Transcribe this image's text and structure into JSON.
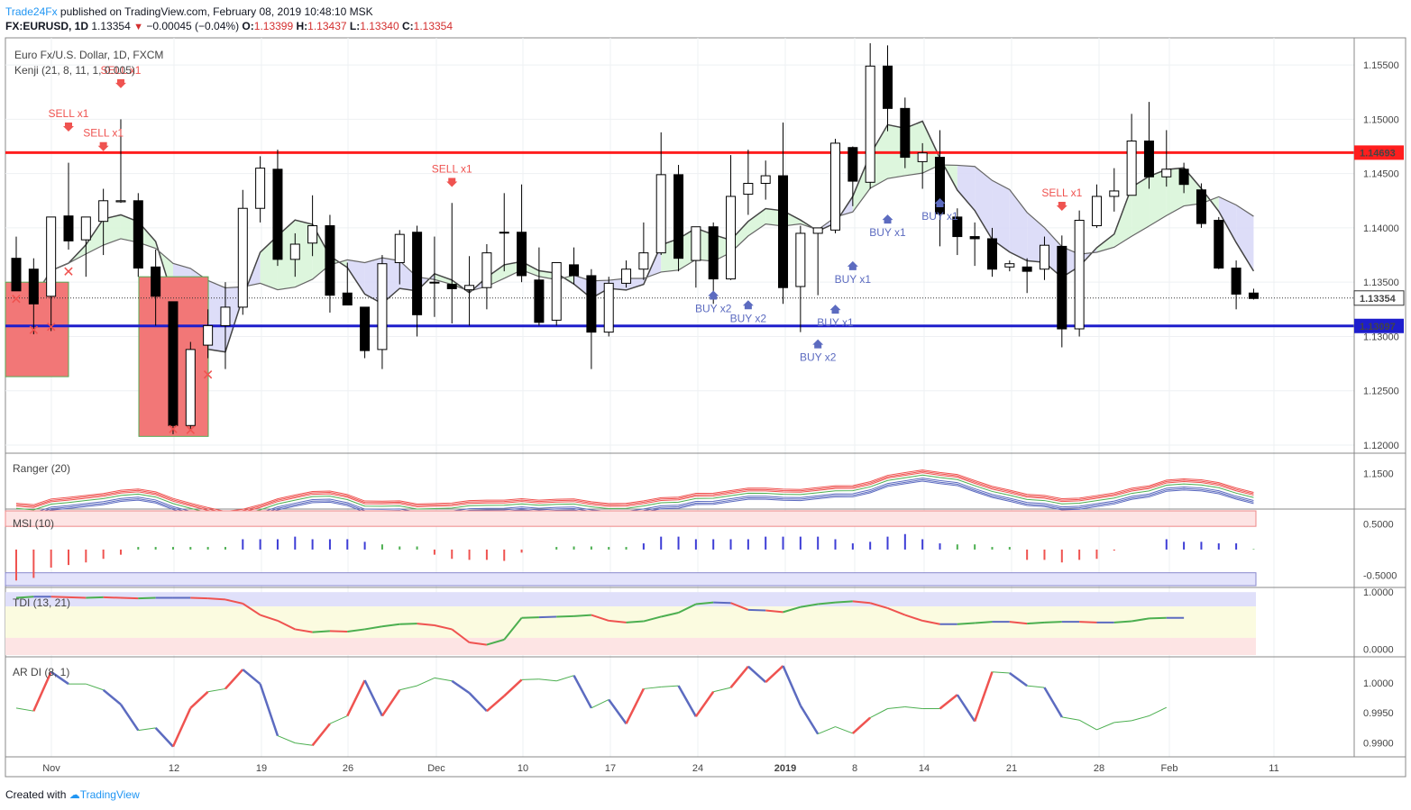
{
  "header": {
    "brand": "Trade24Fx",
    "published": " published on TradingView.com, February 08, 2019 10:48:10 MSK",
    "symbol": "FX:EURUSD, 1D",
    "price": "1.13354",
    "change": "−0.00045 (−0.04%)",
    "ohlc": {
      "o_label": "O:",
      "o": "1.13399",
      "h_label": "H:",
      "h": "1.13437",
      "l_label": "L:",
      "l": "1.13340",
      "c_label": "C:",
      "c": "1.13354"
    }
  },
  "footer": {
    "created": "Created with",
    "tv": "TradingView"
  },
  "colors": {
    "up": "#ffffff",
    "down": "#000000",
    "red": "#ff1e1e",
    "blue": "#1e1ecc",
    "sell": "#ef5350",
    "buy": "#5c6bc0"
  },
  "chart_data": [
    {
      "type": "candlestick",
      "title": "Euro Fx/U.S. Dollar, 1D, FXCM",
      "indicator": "Kenji (21, 8, 11, 1, 0.005)",
      "ylim": [
        1.1195,
        1.1575
      ],
      "yticks": [
        "1.15500",
        "1.15000",
        "1.14500",
        "1.14000",
        "1.13500",
        "1.13000",
        "1.12500",
        "1.12000"
      ],
      "xticks": [
        "Nov",
        "12",
        "19",
        "26",
        "Dec",
        "10",
        "17",
        "24",
        "2019",
        "8",
        "14",
        "21",
        "28",
        "Feb",
        "11"
      ],
      "levels": [
        {
          "name": "resistance",
          "value": 1.14693,
          "label": "1.14693"
        },
        {
          "name": "support",
          "value": 1.13097,
          "label": "1.13097"
        },
        {
          "name": "last",
          "value": 1.13354,
          "label": "1.13354"
        }
      ],
      "candles": [
        [
          1.1372,
          1.1392,
          1.1345,
          1.1342
        ],
        [
          1.1362,
          1.1372,
          1.1302,
          1.133
        ],
        [
          1.1337,
          1.1407,
          1.1305,
          1.141
        ],
        [
          1.1411,
          1.146,
          1.138,
          1.1388
        ],
        [
          1.1389,
          1.141,
          1.1355,
          1.141
        ],
        [
          1.1406,
          1.1436,
          1.1375,
          1.1425
        ],
        [
          1.1424,
          1.15,
          1.1423,
          1.1425
        ],
        [
          1.1425,
          1.1432,
          1.1355,
          1.1363
        ],
        [
          1.1364,
          1.138,
          1.131,
          1.1337
        ],
        [
          1.1332,
          1.1332,
          1.121,
          1.1218
        ],
        [
          1.1218,
          1.1295,
          1.1215,
          1.1288
        ],
        [
          1.1292,
          1.1325,
          1.128,
          1.131
        ],
        [
          1.131,
          1.135,
          1.127,
          1.1327
        ],
        [
          1.1327,
          1.1435,
          1.132,
          1.1418
        ],
        [
          1.1418,
          1.1466,
          1.1405,
          1.1455
        ],
        [
          1.1454,
          1.1472,
          1.1365,
          1.1371
        ],
        [
          1.1371,
          1.1395,
          1.1355,
          1.1385
        ],
        [
          1.1386,
          1.143,
          1.1374,
          1.1402
        ],
        [
          1.1402,
          1.1412,
          1.1322,
          1.1338
        ],
        [
          1.134,
          1.1368,
          1.133,
          1.1329
        ],
        [
          1.1327,
          1.1327,
          1.128,
          1.1287
        ],
        [
          1.1288,
          1.1375,
          1.127,
          1.1367
        ],
        [
          1.1368,
          1.1398,
          1.1348,
          1.1394
        ],
        [
          1.1396,
          1.1402,
          1.13,
          1.132
        ],
        [
          1.135,
          1.1392,
          1.1318,
          1.135
        ],
        [
          1.1348,
          1.1423,
          1.1312,
          1.1344
        ],
        [
          1.1343,
          1.1374,
          1.131,
          1.1347
        ],
        [
          1.1345,
          1.1385,
          1.1325,
          1.1377
        ],
        [
          1.1396,
          1.1432,
          1.136,
          1.1396
        ],
        [
          1.1396,
          1.144,
          1.135,
          1.1356
        ],
        [
          1.1352,
          1.1382,
          1.131,
          1.1313
        ],
        [
          1.1315,
          1.1365,
          1.131,
          1.1368
        ],
        [
          1.1366,
          1.1382,
          1.1348,
          1.1356
        ],
        [
          1.1356,
          1.1362,
          1.127,
          1.1304
        ],
        [
          1.1304,
          1.1355,
          1.13,
          1.1349
        ],
        [
          1.1349,
          1.137,
          1.1345,
          1.1362
        ],
        [
          1.1362,
          1.1405,
          1.1352,
          1.1377
        ],
        [
          1.1377,
          1.1488,
          1.1375,
          1.1449
        ],
        [
          1.1449,
          1.1458,
          1.136,
          1.1372
        ],
        [
          1.137,
          1.14,
          1.1345,
          1.1401
        ],
        [
          1.1401,
          1.1405,
          1.133,
          1.1353
        ],
        [
          1.1353,
          1.1467,
          1.1352,
          1.1429
        ],
        [
          1.1431,
          1.1472,
          1.1412,
          1.1441
        ],
        [
          1.1441,
          1.1462,
          1.1426,
          1.1448
        ],
        [
          1.1448,
          1.1497,
          1.133,
          1.1345
        ],
        [
          1.1346,
          1.1402,
          1.1304,
          1.1395
        ],
        [
          1.1395,
          1.14,
          1.1338,
          1.14
        ],
        [
          1.1398,
          1.1482,
          1.1395,
          1.1478
        ],
        [
          1.1474,
          1.1475,
          1.142,
          1.1443
        ],
        [
          1.1442,
          1.157,
          1.1436,
          1.1549
        ],
        [
          1.1549,
          1.1568,
          1.1489,
          1.151
        ],
        [
          1.151,
          1.152,
          1.1455,
          1.1465
        ],
        [
          1.1461,
          1.1478,
          1.1436,
          1.1469
        ],
        [
          1.1465,
          1.149,
          1.1383,
          1.1413
        ],
        [
          1.141,
          1.1418,
          1.1375,
          1.1392
        ],
        [
          1.1392,
          1.1405,
          1.1365,
          1.139
        ],
        [
          1.139,
          1.14,
          1.1355,
          1.1362
        ],
        [
          1.1364,
          1.137,
          1.136,
          1.1367
        ],
        [
          1.1364,
          1.1372,
          1.134,
          1.136
        ],
        [
          1.1362,
          1.1392,
          1.1352,
          1.1384
        ],
        [
          1.1383,
          1.1393,
          1.129,
          1.1307
        ],
        [
          1.1307,
          1.1416,
          1.13,
          1.1407
        ],
        [
          1.1402,
          1.144,
          1.14,
          1.1429
        ],
        [
          1.1429,
          1.1455,
          1.1415,
          1.1434
        ],
        [
          1.143,
          1.1505,
          1.143,
          1.148
        ],
        [
          1.148,
          1.1516,
          1.1436,
          1.1447
        ],
        [
          1.1447,
          1.149,
          1.1438,
          1.1454
        ],
        [
          1.1454,
          1.146,
          1.1432,
          1.144
        ],
        [
          1.1435,
          1.1441,
          1.14,
          1.1404
        ],
        [
          1.1407,
          1.141,
          1.1362,
          1.1363
        ],
        [
          1.1363,
          1.137,
          1.1325,
          1.1339
        ],
        [
          1.134,
          1.1344,
          1.1334,
          1.1335
        ]
      ],
      "signals": [
        {
          "label": "SELL x1",
          "dir": "sell",
          "bar": 3,
          "price": 1.1492
        },
        {
          "label": "SELL x1",
          "dir": "sell",
          "bar": 5,
          "price": 1.1474
        },
        {
          "label": "SELL x1",
          "dir": "sell",
          "bar": 6,
          "price": 1.1532
        },
        {
          "label": "SELL x1",
          "dir": "sell",
          "bar": 25,
          "price": 1.1441
        },
        {
          "label": "SELL x1",
          "dir": "sell",
          "bar": 60,
          "price": 1.1419
        },
        {
          "label": "BUY x2",
          "dir": "buy",
          "bar": 40,
          "price": 1.1339
        },
        {
          "label": "BUY x2",
          "dir": "buy",
          "bar": 42,
          "price": 1.133
        },
        {
          "label": "BUY x2",
          "dir": "buy",
          "bar": 46,
          "price": 1.1294
        },
        {
          "label": "BUY x1",
          "dir": "buy",
          "bar": 47,
          "price": 1.1326
        },
        {
          "label": "BUY x1",
          "dir": "buy",
          "bar": 48,
          "price": 1.1366
        },
        {
          "label": "BUY x1",
          "dir": "buy",
          "bar": 50,
          "price": 1.1409
        },
        {
          "label": "BUY x1",
          "dir": "buy",
          "bar": 53,
          "price": 1.1424
        }
      ],
      "crosses": [
        [
          0,
          1.133
        ],
        [
          1,
          1.1301
        ],
        [
          2,
          1.1304
        ],
        [
          3,
          1.1355
        ],
        [
          9,
          1.121
        ],
        [
          10,
          1.1209
        ],
        [
          11,
          1.126
        ]
      ]
    },
    {
      "type": "line",
      "title": "Ranger (20)",
      "yticks": [
        "1.1500"
      ],
      "ylim": [
        1.1355,
        1.158
      ]
    },
    {
      "type": "bar",
      "title": "MSI (10)",
      "yticks": [
        "0.5000",
        "-0.5000"
      ],
      "ylim": [
        -0.7,
        0.75
      ],
      "values": [
        -0.6,
        -0.55,
        -0.35,
        -0.3,
        -0.25,
        -0.18,
        -0.1,
        0.05,
        0.05,
        0.05,
        0.05,
        0.05,
        0.05,
        0.2,
        0.2,
        0.2,
        0.25,
        0.2,
        0.2,
        0.2,
        0.15,
        0.1,
        0.06,
        0.06,
        -0.1,
        -0.18,
        -0.2,
        -0.2,
        -0.22,
        -0.06,
        0.0,
        0.05,
        0.06,
        0.06,
        0.05,
        0.05,
        0.12,
        0.25,
        0.25,
        0.2,
        0.2,
        0.2,
        0.2,
        0.25,
        0.25,
        0.25,
        0.25,
        0.2,
        0.12,
        0.15,
        0.25,
        0.3,
        0.2,
        0.12,
        0.1,
        0.1,
        0.05,
        0.05,
        -0.2,
        -0.2,
        -0.25,
        -0.2,
        -0.18,
        -0.02,
        0.0,
        0.0,
        0.2,
        0.15,
        0.15,
        0.12,
        0.12,
        0.01
      ]
    },
    {
      "type": "line",
      "title": "TDI (13, 21)",
      "yticks": [
        "1.0000",
        "0.0000"
      ],
      "ylim": [
        -0.1,
        1.05
      ],
      "values": [
        0.9,
        0.92,
        0.92,
        0.91,
        0.9,
        0.91,
        0.9,
        0.89,
        0.9,
        0.9,
        0.9,
        0.89,
        0.87,
        0.8,
        0.6,
        0.5,
        0.35,
        0.3,
        0.32,
        0.31,
        0.35,
        0.4,
        0.44,
        0.45,
        0.42,
        0.35,
        0.12,
        0.08,
        0.17,
        0.55,
        0.56,
        0.57,
        0.58,
        0.6,
        0.5,
        0.47,
        0.49,
        0.57,
        0.64,
        0.79,
        0.82,
        0.81,
        0.69,
        0.68,
        0.65,
        0.74,
        0.79,
        0.82,
        0.84,
        0.81,
        0.72,
        0.6,
        0.5,
        0.44,
        0.44,
        0.46,
        0.48,
        0.48,
        0.45,
        0.47,
        0.48,
        0.48,
        0.47,
        0.47,
        0.49,
        0.54,
        0.55,
        0.55
      ]
    },
    {
      "type": "line",
      "title": "AR DI (8, 1)",
      "yticks": [
        "1.0000",
        "0.9950",
        "0.9900"
      ],
      "ylim": [
        0.988,
        1.004
      ],
      "values": [
        0.9958,
        0.9953,
        1.0018,
        0.9998,
        0.9998,
        0.9988,
        0.9964,
        0.9921,
        0.9925,
        0.9894,
        0.9958,
        0.9985,
        0.999,
        1.0022,
        0.9998,
        0.9912,
        0.99,
        0.9896,
        0.9932,
        0.9945,
        1.0004,
        0.9945,
        0.9988,
        0.9995,
        1.0008,
        1.0003,
        0.9983,
        0.9953,
        0.9978,
        1.0005,
        1.0006,
        1.0003,
        1.0012,
        0.9958,
        0.9972,
        0.9932,
        0.999,
        0.9993,
        0.9995,
        0.9944,
        0.9985,
        0.9992,
        1.0027,
        1.0001,
        1.0028,
        0.9962,
        0.9915,
        0.9927,
        0.9916,
        0.9942,
        0.9957,
        0.996,
        0.9957,
        0.9957,
        0.998,
        0.9936,
        1.0018,
        1.0016,
        0.9995,
        0.9992,
        0.9943,
        0.9938,
        0.9922,
        0.9934,
        0.9937,
        0.9945,
        0.9959
      ]
    }
  ]
}
